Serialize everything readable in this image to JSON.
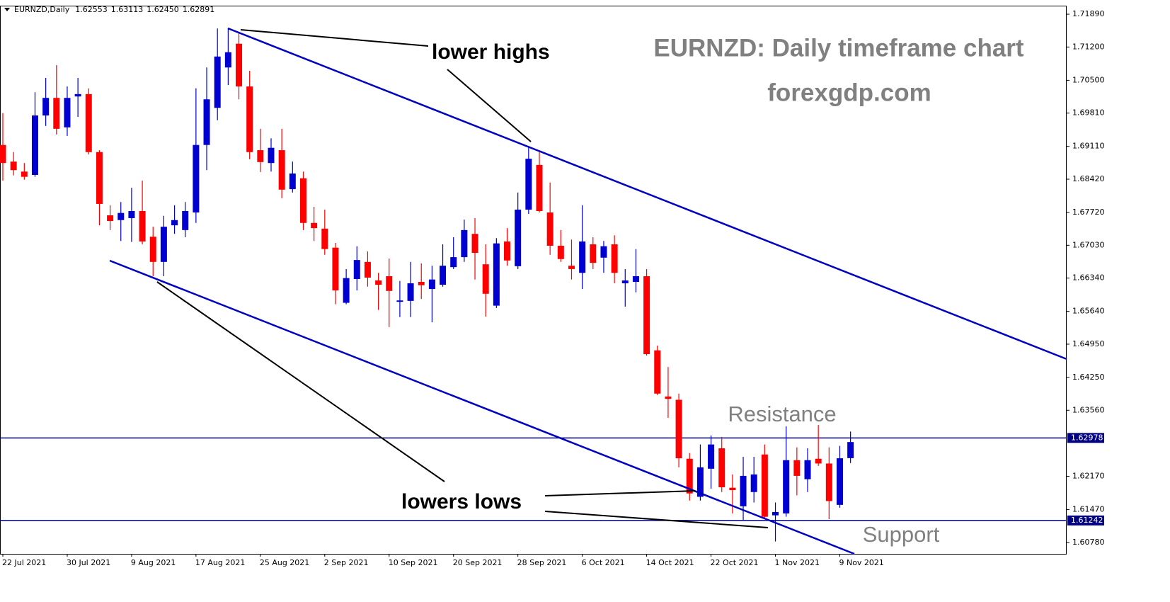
{
  "chart_data": {
    "type": "candlestick",
    "header": {
      "symbol": "EURNZD,Daily",
      "last_bar_labels": [
        "1.62553",
        "1.63113",
        "1.62450",
        "1.62891"
      ]
    },
    "title": "EURNZD: Daily timeframe chart",
    "subtitle": "forexgdp.com",
    "annotations": [
      "lower highs",
      "lowers lows",
      "Resistance",
      "Support"
    ],
    "categories": [
      "22 Jul 2021",
      null,
      null,
      null,
      null,
      null,
      "30 Jul 2021",
      null,
      null,
      null,
      null,
      null,
      "9 Aug 2021",
      null,
      null,
      null,
      null,
      null,
      "17 Aug 2021",
      null,
      null,
      null,
      null,
      null,
      "25 Aug 2021",
      null,
      null,
      null,
      null,
      null,
      "2 Sep 2021",
      null,
      null,
      null,
      null,
      null,
      "10 Sep 2021",
      null,
      null,
      null,
      null,
      null,
      "20 Sep 2021",
      null,
      null,
      null,
      null,
      null,
      "28 Sep 2021",
      null,
      null,
      null,
      null,
      null,
      "6 Oct 2021",
      null,
      null,
      null,
      null,
      null,
      "14 Oct 2021",
      null,
      null,
      null,
      null,
      null,
      "22 Oct 2021",
      null,
      null,
      null,
      null,
      null,
      "1 Nov 2021",
      null,
      null,
      null,
      null,
      null,
      "9 Nov 2021",
      null
    ],
    "open": [
      1.6914,
      1.6879,
      1.6858,
      1.6851,
      1.6976,
      1.7013,
      1.6951,
      1.7016,
      1.7021,
      1.6899,
      1.6766,
      1.6756,
      1.676,
      1.6775,
      1.6721,
      1.6668,
      1.6745,
      1.6735,
      1.6772,
      1.6914,
      1.6992,
      1.7077,
      1.7127,
      1.7037,
      1.6903,
      1.6876,
      1.6903,
      1.6821,
      1.6844,
      1.675,
      1.6738,
      1.6698,
      1.6582,
      1.6632,
      1.6668,
      1.6629,
      1.6638,
      1.6584,
      1.6586,
      1.6626,
      1.6611,
      1.662,
      1.6657,
      1.6678,
      1.6727,
      1.6663,
      1.6576,
      1.6711,
      1.6659,
      1.6778,
      1.6872,
      1.6772,
      1.6702,
      1.666,
      1.6645,
      1.6705,
      1.6677,
      1.6705,
      1.6623,
      1.6626,
      1.6638,
      1.6482,
      1.6385,
      1.6378,
      1.6254,
      1.6174,
      1.6233,
      1.6276,
      1.6193,
      1.6154,
      1.6184,
      1.6263,
      1.6135,
      1.6139,
      1.6251,
      1.6211,
      1.6254,
      1.6244,
      1.6157,
      1.62553
    ],
    "high": [
      1.6981,
      1.6899,
      1.6876,
      1.7025,
      1.7055,
      1.7082,
      1.7037,
      1.7055,
      1.7033,
      1.6903,
      1.6787,
      1.6794,
      1.6824,
      1.6839,
      1.6742,
      1.6765,
      1.6787,
      1.6794,
      1.7033,
      1.7077,
      1.7159,
      1.7159,
      1.7152,
      1.707,
      1.6948,
      1.6928,
      1.6948,
      1.6879,
      1.6858,
      1.6784,
      1.6778,
      1.6708,
      1.6653,
      1.6701,
      1.669,
      1.6645,
      1.6675,
      1.6628,
      1.6668,
      1.6665,
      1.666,
      1.6705,
      1.672,
      1.6757,
      1.676,
      1.6705,
      1.6718,
      1.6739,
      1.6814,
      1.6912,
      1.6899,
      1.6835,
      1.6735,
      1.6715,
      1.6787,
      1.672,
      1.6712,
      1.6724,
      1.6653,
      1.6695,
      1.6653,
      1.6492,
      1.6447,
      1.6391,
      1.6266,
      1.6284,
      1.6303,
      1.63,
      1.6221,
      1.6258,
      1.6258,
      1.6284,
      1.6162,
      1.6322,
      1.6278,
      1.6276,
      1.6325,
      1.6278,
      1.6281,
      1.63113
    ],
    "low": [
      1.6839,
      1.685,
      1.6841,
      1.6847,
      1.6954,
      1.6936,
      1.6933,
      1.6973,
      1.6894,
      1.6745,
      1.6735,
      1.6712,
      1.671,
      1.6705,
      1.6638,
      1.6638,
      1.6727,
      1.672,
      1.675,
      1.6861,
      1.6966,
      1.704,
      1.701,
      1.6884,
      1.6857,
      1.6858,
      1.6802,
      1.6814,
      1.6735,
      1.6712,
      1.6683,
      1.6579,
      1.6579,
      1.6608,
      1.6616,
      1.6567,
      1.6531,
      1.6552,
      1.6552,
      1.659,
      1.6541,
      1.6616,
      1.6653,
      1.6668,
      1.6631,
      1.6553,
      1.6571,
      1.666,
      1.6653,
      1.6769,
      1.6772,
      1.6683,
      1.6668,
      1.6631,
      1.6611,
      1.6653,
      1.6645,
      1.6623,
      1.6574,
      1.6604,
      1.6471,
      1.6388,
      1.634,
      1.6236,
      1.6166,
      1.6166,
      1.6191,
      1.6184,
      1.6139,
      1.6124,
      1.6162,
      1.6129,
      1.608,
      1.6132,
      1.6177,
      1.6184,
      1.6239,
      1.6127,
      1.6151,
      1.6245
    ],
    "close": [
      1.6876,
      1.6861,
      1.6847,
      1.6976,
      1.7013,
      1.6948,
      1.7013,
      1.7021,
      1.6899,
      1.679,
      1.6754,
      1.6771,
      1.6775,
      1.6711,
      1.6668,
      1.6742,
      1.6756,
      1.6775,
      1.6914,
      1.701,
      1.71,
      1.7109,
      1.7037,
      1.6899,
      1.6878,
      1.6908,
      1.682,
      1.6854,
      1.675,
      1.6739,
      1.6695,
      1.6608,
      1.6634,
      1.6672,
      1.6635,
      1.662,
      1.6607,
      1.6587,
      1.6623,
      1.6619,
      1.6631,
      1.666,
      1.6678,
      1.6735,
      1.6687,
      1.6601,
      1.6707,
      1.6671,
      1.6778,
      1.6885,
      1.6775,
      1.6702,
      1.6674,
      1.6653,
      1.6711,
      1.6666,
      1.6701,
      1.6645,
      1.6629,
      1.6638,
      1.6474,
      1.6391,
      1.638,
      1.6255,
      1.6181,
      1.6236,
      1.6284,
      1.6194,
      1.6188,
      1.6218,
      1.6221,
      1.6132,
      1.6142,
      1.6251,
      1.6218,
      1.6251,
      1.6244,
      1.6165,
      1.6255,
      1.62891
    ],
    "colors": {
      "up": "#0000d0",
      "down": "#ff0000"
    },
    "ylim": [
      1.6054,
      1.7204
    ],
    "yticks": [
      {
        "value": 1.7189,
        "label": "1.71890"
      },
      {
        "value": 1.712,
        "label": "1.71200"
      },
      {
        "value": 1.705,
        "label": "1.70500"
      },
      {
        "value": 1.6981,
        "label": "1.69810"
      },
      {
        "value": 1.6911,
        "label": "1.69110"
      },
      {
        "value": 1.6842,
        "label": "1.68420"
      },
      {
        "value": 1.6772,
        "label": "1.67720"
      },
      {
        "value": 1.6703,
        "label": "1.67030"
      },
      {
        "value": 1.6634,
        "label": "1.66340"
      },
      {
        "value": 1.6564,
        "label": "1.65640"
      },
      {
        "value": 1.6495,
        "label": "1.64950"
      },
      {
        "value": 1.6425,
        "label": "1.64250"
      },
      {
        "value": 1.6356,
        "label": "1.63560"
      },
      {
        "value": 1.6217,
        "label": "1.62170"
      },
      {
        "value": 1.6147,
        "label": "1.61470"
      },
      {
        "value": 1.6078,
        "label": "1.60780"
      }
    ],
    "levels": [
      1.62978,
      1.61242
    ],
    "level_color": "#000080"
  }
}
